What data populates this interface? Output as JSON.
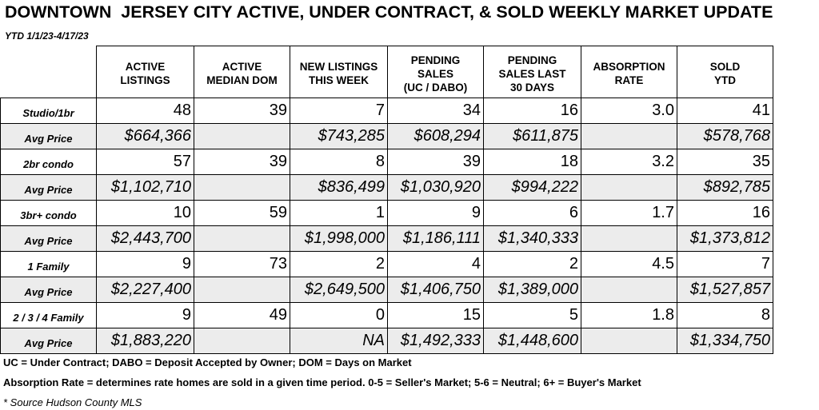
{
  "header": {
    "title": "DOWNTOWN  JERSEY CITY ACTIVE, UNDER CONTRACT, & SOLD WEEKLY MARKET UPDATE",
    "subtitle": "YTD 1/1/23-4/17/23"
  },
  "table": {
    "columns": [
      "ACTIVE\nLISTINGS",
      "ACTIVE\nMEDIAN DOM",
      "NEW LISTINGS\nTHIS WEEK",
      "PENDING\nSALES\n(UC / DABO)",
      "PENDING\nSALES LAST\n30 DAYS",
      "ABSORPTION\nRATE",
      "SOLD\nYTD"
    ],
    "rows": [
      {
        "label": "Studio/1br",
        "values": [
          "48",
          "39",
          "7",
          "34",
          "16",
          "3.0",
          "41"
        ]
      },
      {
        "label": "Avg Price",
        "values": [
          "$664,366",
          null,
          "$743,285",
          "$608,294",
          "$611,875",
          null,
          "$578,768"
        ]
      },
      {
        "label": "2br condo",
        "values": [
          "57",
          "39",
          "8",
          "39",
          "18",
          "3.2",
          "35"
        ]
      },
      {
        "label": "Avg Price",
        "values": [
          "$1,102,710",
          null,
          "$836,499",
          "$1,030,920",
          "$994,222",
          null,
          "$892,785"
        ]
      },
      {
        "label": "3br+ condo",
        "values": [
          "10",
          "59",
          "1",
          "9",
          "6",
          "1.7",
          "16"
        ]
      },
      {
        "label": "Avg Price",
        "values": [
          "$2,443,700",
          null,
          "$1,998,000",
          "$1,186,111",
          "$1,340,333",
          null,
          "$1,373,812"
        ]
      },
      {
        "label": "1 Family",
        "values": [
          "9",
          "73",
          "2",
          "4",
          "2",
          "4.5",
          "7"
        ]
      },
      {
        "label": "Avg Price",
        "values": [
          "$2,227,400",
          null,
          "$2,649,500",
          "$1,406,750",
          "$1,389,000",
          null,
          "$1,527,857"
        ]
      },
      {
        "label": "2 / 3 / 4 Family",
        "values": [
          "9",
          "49",
          "0",
          "15",
          "5",
          "1.8",
          "8"
        ]
      },
      {
        "label": "Avg Price",
        "values": [
          "$1,883,220",
          null,
          "NA",
          "$1,492,333",
          "$1,448,600",
          null,
          "$1,334,750"
        ]
      }
    ]
  },
  "notes": [
    "UC = Under Contract; DABO = Deposit Accepted by Owner; DOM = Days on Market",
    "Absorption Rate = determines rate homes are sold in a given time period.  0-5 = Seller's Market; 5-6 = Neutral; 6+ = Buyer's Market",
    "* Source Hudson County MLS"
  ]
}
